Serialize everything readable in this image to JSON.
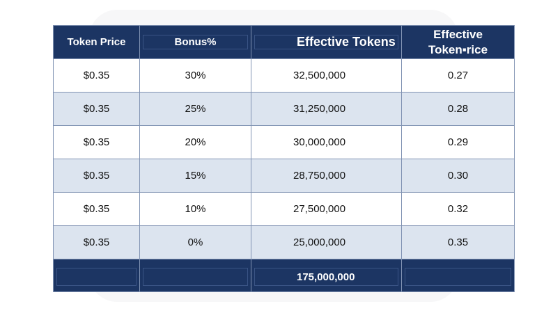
{
  "table": {
    "headers": [
      "Token Price",
      "Bonus%",
      "Effective Tokens",
      "Effective Token▪rice"
    ],
    "rows": [
      [
        "$0.35",
        "30%",
        "32,500,000",
        "0.27"
      ],
      [
        "$0.35",
        "25%",
        "31,250,000",
        "0.28"
      ],
      [
        "$0.35",
        "20%",
        "30,000,000",
        "0.29"
      ],
      [
        "$0.35",
        "15%",
        "28,750,000",
        "0.30"
      ],
      [
        "$0.35",
        "10%",
        "27,500,000",
        "0.32"
      ],
      [
        "$0.35",
        "0%",
        "25,000,000",
        "0.35"
      ]
    ],
    "footer": [
      "",
      "",
      "175,000,000",
      ""
    ]
  }
}
